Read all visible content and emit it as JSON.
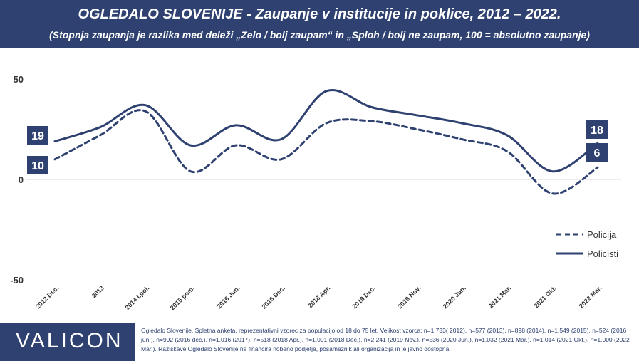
{
  "header": {
    "title": "OGLEDALO SLOVENIJE - Zaupanje v institucije in poklice, 2012 – 2022.",
    "subtitle": "(Stopnja zaupanja je razlika med deleži „Zelo / bolj zaupam“ in „Sploh / bolj ne zaupam, 100 = absolutno zaupanje)"
  },
  "chart_data": {
    "type": "line",
    "categories": [
      "2012 Dec.",
      "2013",
      "2014 I.pol.",
      "2015 pom.",
      "2016 Jun.",
      "2016 Dec.",
      "2018 Apr.",
      "2018 Dec.",
      "2019 Nov.",
      "2020 Jun.",
      "2021 Mar.",
      "2021 Okt.",
      "2022 Mar."
    ],
    "series": [
      {
        "name": "Policija",
        "values": [
          10,
          22,
          34,
          4,
          17,
          10,
          28,
          29,
          25,
          20,
          14,
          -7,
          6
        ],
        "style": "dashed",
        "color": "#2e4170"
      },
      {
        "name": "Policisti",
        "values": [
          19,
          26,
          37,
          17,
          27,
          20,
          44,
          36,
          32,
          28,
          22,
          4,
          18
        ],
        "style": "solid",
        "color": "#2e4170"
      }
    ],
    "ylim": [
      -50,
      50
    ],
    "yticks": [
      50,
      0,
      -50
    ],
    "value_labels": {
      "Policija": {
        "first": "10",
        "last": "6"
      },
      "Policisti": {
        "first": "19",
        "last": "18"
      }
    },
    "legend_position": "bottom-right",
    "grid": false
  },
  "footer": {
    "logo": "VALICON",
    "note": "Ogledalo Slovenije. Spletna anketa, reprezentativni vzorec za populacijo od 18 do 75 let. Velikost vzorca: n=1.733( 2012), n=577 (2013), n=898 (2014), n=1.549 (2015), n=524 (2016 jun.), n=992 (2016 dec.), n=1.016 (2017), n=518 (2018 Apr.), n=1.001 (2018 Dec.), n=2.241 (2019 Nov.), n=536 (2020 Jun.), n=1.032 (2021 Mar.), n=1.014 (2021 Okt.), n=1.000 (2022 Mar.). Raziskave Ogledalo Slovenije ne financira nobeno podjetje, posameznik ali organizacija in je javno dostopna."
  }
}
